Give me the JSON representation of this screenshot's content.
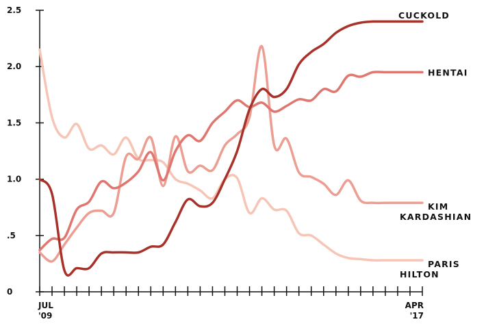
{
  "chart_data": {
    "type": "line",
    "title": "",
    "xlabel": "",
    "ylabel": "",
    "ylim": [
      0,
      2.5
    ],
    "yticks": [
      {
        "value": 0,
        "label": "0"
      },
      {
        "value": 0.5,
        "label": ".5"
      },
      {
        "value": 1.0,
        "label": "1.0"
      },
      {
        "value": 1.5,
        "label": "1.5"
      },
      {
        "value": 2.0,
        "label": "2.0"
      },
      {
        "value": 2.5,
        "label": "2.5"
      }
    ],
    "x_range": [
      "2009-07",
      "2017-04"
    ],
    "x_tick_count": 32,
    "x_labels": [
      {
        "at": "2009-07",
        "line1": "JUL",
        "line2": "'09"
      },
      {
        "at": "2017-04",
        "line1": "APR",
        "line2": "'17"
      }
    ],
    "grid": false,
    "legend": "direct labels at line ends (right)",
    "series": [
      {
        "name": "CUCKOLD",
        "label_lines": [
          "CUCKOLD"
        ],
        "color": "#a8322a",
        "x": [
          "2009-07",
          "2009-10",
          "2010-01",
          "2010-04",
          "2010-07",
          "2010-10",
          "2011-01",
          "2011-04",
          "2011-07",
          "2011-10",
          "2012-01",
          "2012-04",
          "2012-07",
          "2012-10",
          "2013-01",
          "2013-04",
          "2013-07",
          "2013-10",
          "2014-01",
          "2014-04",
          "2014-07",
          "2014-10",
          "2015-01",
          "2015-04",
          "2015-07",
          "2015-10",
          "2016-01",
          "2016-04",
          "2016-07",
          "2016-10",
          "2017-01",
          "2017-04"
        ],
        "values": [
          1.0,
          0.87,
          0.19,
          0.21,
          0.21,
          0.34,
          0.35,
          0.35,
          0.35,
          0.4,
          0.42,
          0.62,
          0.82,
          0.76,
          0.79,
          1.0,
          1.25,
          1.62,
          1.8,
          1.73,
          1.8,
          2.02,
          2.13,
          2.2,
          2.3,
          2.36,
          2.39,
          2.4,
          2.4,
          2.4,
          2.4,
          2.4
        ]
      },
      {
        "name": "HENTAI",
        "label_lines": [
          "HENTAI"
        ],
        "color": "#e07670",
        "x": [
          "2009-07",
          "2009-10",
          "2010-01",
          "2010-04",
          "2010-07",
          "2010-10",
          "2011-01",
          "2011-04",
          "2011-07",
          "2011-10",
          "2012-01",
          "2012-04",
          "2012-07",
          "2012-10",
          "2013-01",
          "2013-04",
          "2013-07",
          "2013-10",
          "2014-01",
          "2014-04",
          "2014-07",
          "2014-10",
          "2015-01",
          "2015-04",
          "2015-07",
          "2015-10",
          "2016-01",
          "2016-04",
          "2016-07",
          "2016-10",
          "2017-01",
          "2017-04"
        ],
        "values": [
          0.37,
          0.47,
          0.48,
          0.73,
          0.8,
          0.98,
          0.92,
          0.97,
          1.07,
          1.24,
          0.99,
          1.25,
          1.39,
          1.34,
          1.5,
          1.6,
          1.7,
          1.64,
          1.68,
          1.6,
          1.65,
          1.71,
          1.7,
          1.8,
          1.78,
          1.92,
          1.91,
          1.95,
          1.95,
          1.95,
          1.95,
          1.95
        ]
      },
      {
        "name": "KIM KARDASHIAN",
        "label_lines": [
          "KIM",
          "KARDASHIAN"
        ],
        "color": "#ec9e92",
        "x": [
          "2009-07",
          "2009-10",
          "2010-01",
          "2010-04",
          "2010-07",
          "2010-10",
          "2011-01",
          "2011-04",
          "2011-07",
          "2011-10",
          "2012-01",
          "2012-04",
          "2012-07",
          "2012-10",
          "2013-01",
          "2013-04",
          "2013-07",
          "2013-10",
          "2014-01",
          "2014-04",
          "2014-07",
          "2014-10",
          "2015-01",
          "2015-04",
          "2015-07",
          "2015-10",
          "2016-01",
          "2016-04",
          "2016-07",
          "2016-10",
          "2017-01",
          "2017-04"
        ],
        "values": [
          0.35,
          0.27,
          0.42,
          0.57,
          0.7,
          0.72,
          0.7,
          1.2,
          1.18,
          1.37,
          0.94,
          1.38,
          1.07,
          1.12,
          1.08,
          1.3,
          1.4,
          1.55,
          2.18,
          1.3,
          1.36,
          1.06,
          1.02,
          0.96,
          0.86,
          0.99,
          0.81,
          0.79,
          0.79,
          0.79,
          0.79,
          0.79
        ]
      },
      {
        "name": "PARIS HILTON",
        "label_lines": [
          "PARIS",
          "HILTON"
        ],
        "color": "#f6c5b6",
        "x": [
          "2009-07",
          "2009-10",
          "2010-01",
          "2010-04",
          "2010-07",
          "2010-10",
          "2011-01",
          "2011-04",
          "2011-07",
          "2011-10",
          "2012-01",
          "2012-04",
          "2012-07",
          "2012-10",
          "2013-01",
          "2013-04",
          "2013-07",
          "2013-10",
          "2014-01",
          "2014-04",
          "2014-07",
          "2014-10",
          "2015-01",
          "2015-04",
          "2015-07",
          "2015-10",
          "2016-01",
          "2016-04",
          "2016-07",
          "2016-10",
          "2017-01",
          "2017-04"
        ],
        "values": [
          2.15,
          1.55,
          1.37,
          1.49,
          1.27,
          1.3,
          1.22,
          1.37,
          1.18,
          1.17,
          1.15,
          1.0,
          0.96,
          0.9,
          0.83,
          1.0,
          1.01,
          0.7,
          0.83,
          0.73,
          0.72,
          0.52,
          0.5,
          0.42,
          0.34,
          0.3,
          0.29,
          0.28,
          0.28,
          0.28,
          0.28,
          0.28
        ]
      }
    ]
  }
}
